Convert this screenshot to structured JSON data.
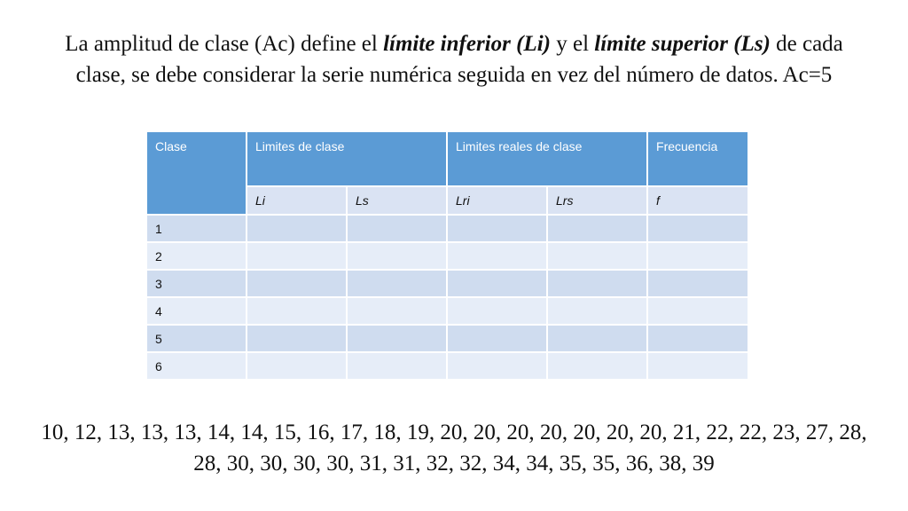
{
  "heading": {
    "p1": "La amplitud de clase (Ac) define el ",
    "b1": "límite inferior (Li)",
    "p2": " y el ",
    "b2": "límite superior (Ls)",
    "p3": " de cada clase, se debe considerar la serie numérica seguida en vez del número de datos. Ac=5"
  },
  "table": {
    "headers": {
      "clase": "Clase",
      "limites": "Limites de clase",
      "reales": "Limites reales de clase",
      "frecuencia": "Frecuencia"
    },
    "subheaders": [
      "Li",
      "Ls",
      "Lri",
      "Lrs",
      "f"
    ],
    "rows": [
      "1",
      "2",
      "3",
      "4",
      "5",
      "6"
    ]
  },
  "series_text": "10, 12, 13, 13, 13, 14, 14, 15, 16, 17, 18, 19, 20, 20, 20, 20, 20, 20, 20, 21, 22, 22, 23, 27, 28, 28, 30, 30, 30, 30, 31, 31, 32, 32, 34, 34, 35, 35, 36, 38, 39"
}
